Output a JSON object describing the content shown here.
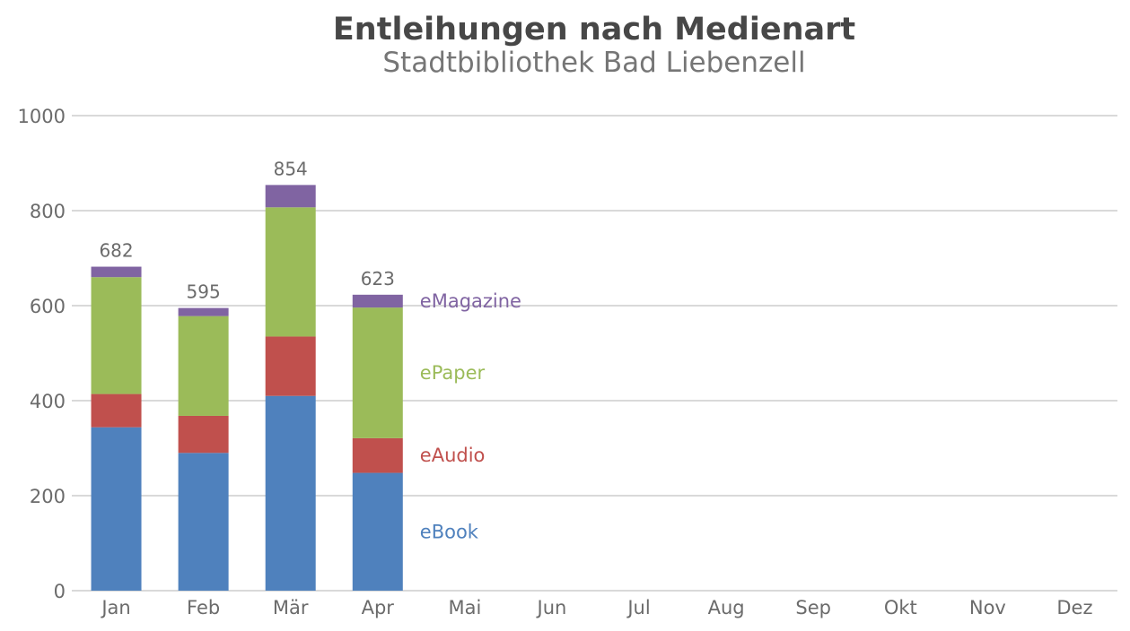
{
  "chart_data": {
    "type": "bar",
    "stacked": true,
    "title": "Entleihungen nach Medienart",
    "subtitle": "Stadtbibliothek Bad Liebenzell",
    "xlabel": "",
    "ylabel": "",
    "categories": [
      "Jan",
      "Feb",
      "Mär",
      "Apr",
      "Mai",
      "Jun",
      "Jul",
      "Aug",
      "Sep",
      "Okt",
      "Nov",
      "Dez"
    ],
    "ylim": [
      0,
      1000
    ],
    "yticks": [
      "0",
      "200",
      "400",
      "600",
      "800",
      "1000"
    ],
    "grid": true,
    "legend": "direct labels right of last bar",
    "series": [
      {
        "name": "eBook",
        "color": "#4f81bd",
        "values": [
          344,
          290,
          410,
          248,
          null,
          null,
          null,
          null,
          null,
          null,
          null,
          null
        ]
      },
      {
        "name": "eAudio",
        "color": "#c0504d",
        "values": [
          70,
          78,
          125,
          73,
          null,
          null,
          null,
          null,
          null,
          null,
          null,
          null
        ]
      },
      {
        "name": "ePaper",
        "color": "#9bbb59",
        "values": [
          246,
          210,
          272,
          275,
          null,
          null,
          null,
          null,
          null,
          null,
          null,
          null
        ]
      },
      {
        "name": "eMagazine",
        "color": "#8064a2",
        "values": [
          22,
          17,
          47,
          27,
          null,
          null,
          null,
          null,
          null,
          null,
          null,
          null
        ]
      }
    ],
    "totals": [
      "682",
      "595",
      "854",
      "623",
      null,
      null,
      null,
      null,
      null,
      null,
      null,
      null
    ]
  }
}
